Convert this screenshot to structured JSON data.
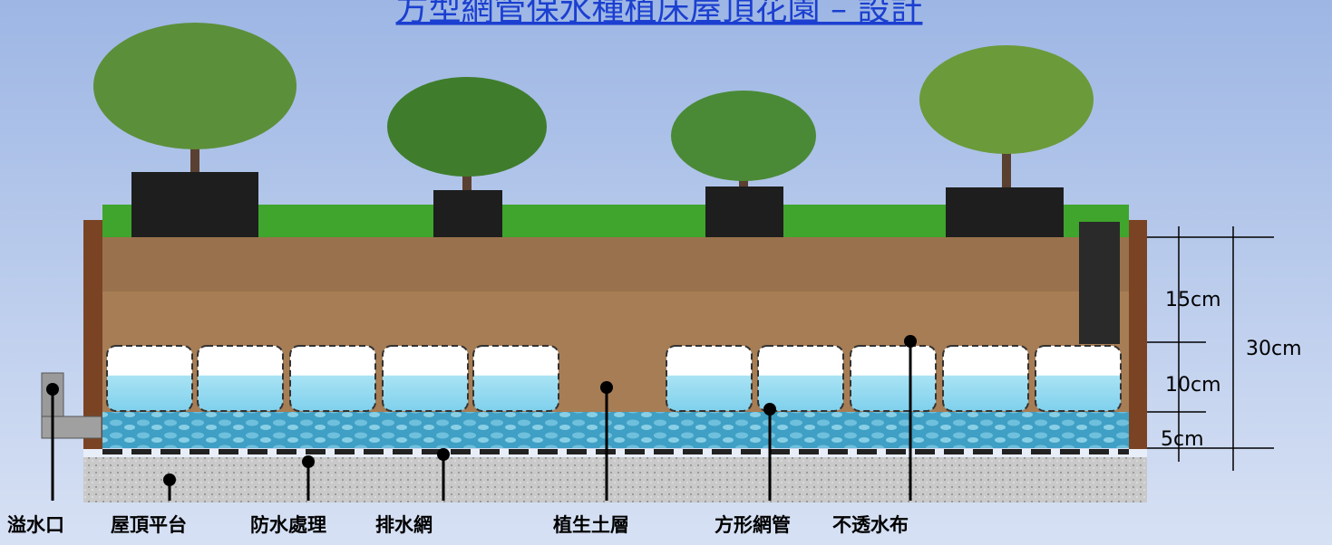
{
  "header": {
    "title": "方型網管保水種植床屋頂花園 – 設計"
  },
  "labels": [
    "溢水口",
    "屋頂平台",
    "防水處理",
    "排水網",
    "植生土層",
    "方形網管",
    "不透水布"
  ],
  "dimensions": [
    "15cm",
    "10cm",
    "5cm",
    "30cm"
  ]
}
